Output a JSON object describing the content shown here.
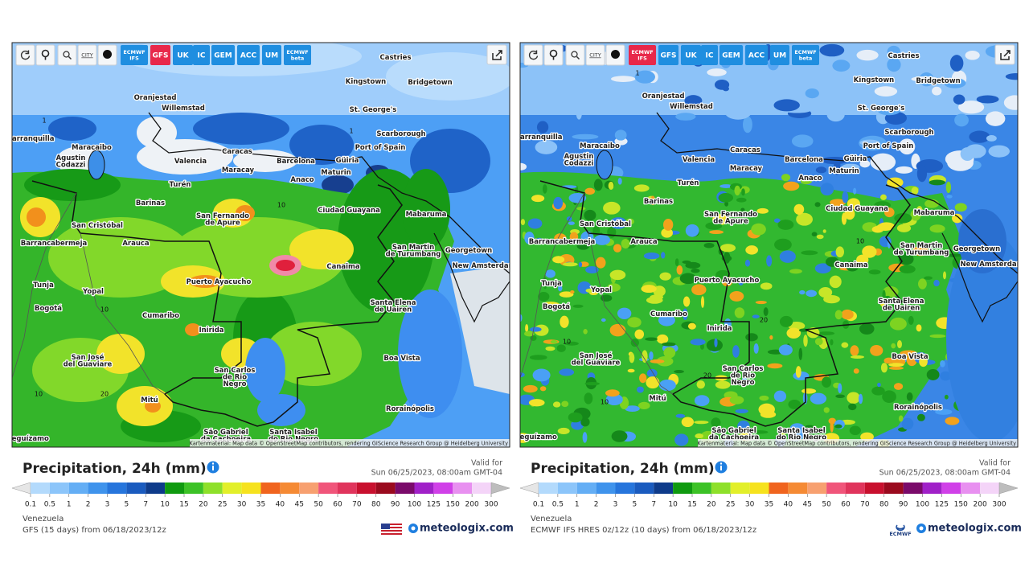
{
  "panels": [
    {
      "toolbar": {
        "city": "CITY",
        "models": [
          [
            "ECMWF",
            "IFS"
          ],
          [
            "GFS"
          ],
          [
            "UK"
          ],
          [
            "IC"
          ],
          [
            "GEM"
          ],
          [
            "ACC"
          ],
          [
            "UM"
          ],
          [
            "ECMWF",
            "beta"
          ]
        ]
      },
      "map": {
        "cities": [
          [
            "Castries"
          ],
          [
            "Kingstown"
          ],
          [
            "Bridgetown"
          ],
          [
            "Oranjestad"
          ],
          [
            "Willemstad"
          ],
          [
            "St. George's"
          ],
          [
            "Scarborough"
          ],
          [
            "Barranquilla"
          ],
          [
            "Port of Spain"
          ],
          [
            "Maracaibo"
          ],
          [
            "Agustin",
            "Codazzi"
          ],
          [
            "Caracas"
          ],
          [
            "Valencia"
          ],
          [
            "Barcelona"
          ],
          [
            "Güiria"
          ],
          [
            "Maracay"
          ],
          [
            "Maturin"
          ],
          [
            "Turén"
          ],
          [
            "Anaco"
          ],
          [
            "Barinas"
          ],
          [
            "Ciudad Guayana"
          ],
          [
            "San Fernando",
            "de Apure"
          ],
          [
            "Mabaruma"
          ],
          [
            "San Cristóbal"
          ],
          [
            "Barrancabermeja"
          ],
          [
            "Arauca"
          ],
          [
            "San Martin",
            "de Turumbang"
          ],
          [
            "Georgetown"
          ],
          [
            "New Amsterdam"
          ],
          [
            "Canaima"
          ],
          [
            "Puerto Ayacucho"
          ],
          [
            "Tunja"
          ],
          [
            "Yopal"
          ],
          [
            "Santa Elena",
            "de Uairen"
          ],
          [
            "Bogotá"
          ],
          [
            "Cumaribo"
          ],
          [
            "Inirida"
          ],
          [
            "Boa Vista"
          ],
          [
            "San José",
            "del Guaviare"
          ],
          [
            "San Carlos",
            "de Rio",
            "Negro"
          ],
          [
            "Mitú"
          ],
          [
            "Rorainópolis"
          ],
          [
            "São Gabriel",
            "da Cachoeira"
          ],
          [
            "Santa Isabel",
            "do Rio Negro"
          ],
          [
            "Leguízamo"
          ]
        ],
        "contours": [
          "1",
          "1",
          "10",
          "10",
          "20",
          "10"
        ],
        "attribution": "Kartenmaterial: Map data © OpenStreetMap contributors, rendering GIScience Research Group @ Heidelberg University"
      },
      "title": "Precipitation, 24h (mm)",
      "valid_label": "Valid for",
      "valid_time": "Sun 06/25/2023, 08:00am GMT-04",
      "scale": [
        0.1,
        0.5,
        1,
        2,
        3,
        5,
        7,
        10,
        15,
        20,
        25,
        30,
        35,
        40,
        45,
        50,
        60,
        70,
        80,
        90,
        100,
        125,
        150,
        200,
        300
      ],
      "region": "Venezuela",
      "model_run": "GFS (15 days) from 06/18/2023/12z",
      "brand": "meteologix.com"
    },
    {
      "toolbar": {
        "city": "CITY",
        "models": [
          [
            "ECMWF",
            "IFS"
          ],
          [
            "GFS"
          ],
          [
            "UK"
          ],
          [
            "IC"
          ],
          [
            "GEM"
          ],
          [
            "ACC"
          ],
          [
            "UM"
          ],
          [
            "ECMWF",
            "beta"
          ]
        ]
      },
      "map": {
        "cities": [
          [
            "Castries"
          ],
          [
            "Kingstown"
          ],
          [
            "Bridgetown"
          ],
          [
            "Oranjestad"
          ],
          [
            "Willemstad"
          ],
          [
            "St. George's"
          ],
          [
            "Scarborough"
          ],
          [
            "Barranquilla"
          ],
          [
            "Port of Spain"
          ],
          [
            "Maracaibo"
          ],
          [
            "Agustin",
            "Codazzi"
          ],
          [
            "Caracas"
          ],
          [
            "Valencia"
          ],
          [
            "Barcelona"
          ],
          [
            "Güiria"
          ],
          [
            "Maracay"
          ],
          [
            "Maturin"
          ],
          [
            "Turén"
          ],
          [
            "Anaco"
          ],
          [
            "Barinas"
          ],
          [
            "Ciudad Guayana"
          ],
          [
            "San Fernando",
            "de Apure"
          ],
          [
            "Mabaruma"
          ],
          [
            "San Cristóbal"
          ],
          [
            "Barrancabermeja"
          ],
          [
            "Arauca"
          ],
          [
            "San Martin",
            "de Turumbang"
          ],
          [
            "Georgetown"
          ],
          [
            "New Amsterdam"
          ],
          [
            "Canaima"
          ],
          [
            "Puerto Ayacucho"
          ],
          [
            "Tunja"
          ],
          [
            "Yopal"
          ],
          [
            "Santa Elena",
            "de Uairen"
          ],
          [
            "Bogotá"
          ],
          [
            "Cumaribo"
          ],
          [
            "Inirida"
          ],
          [
            "Boa Vista"
          ],
          [
            "San José",
            "del Guaviare"
          ],
          [
            "San Carlos",
            "de Rio",
            "Negro"
          ],
          [
            "Mitú"
          ],
          [
            "Rorainópolis"
          ],
          [
            "São Gabriel",
            "da Cachoeira"
          ],
          [
            "Santa Isabel",
            "do Rio Negro"
          ],
          [
            "Leguízamo"
          ]
        ],
        "contours": [
          "1",
          "10",
          "20",
          "10",
          "20",
          "10"
        ],
        "attribution": "Kartenmaterial: Map data © OpenStreetMap contributors, rendering GIScience Research Group @ Heidelberg University"
      },
      "title": "Precipitation, 24h (mm)",
      "valid_label": "Valid for",
      "valid_time": "Sun 06/25/2023, 08:00am GMT-04",
      "scale": [
        0.1,
        0.5,
        1,
        2,
        3,
        5,
        7,
        10,
        15,
        20,
        25,
        30,
        35,
        40,
        45,
        50,
        60,
        70,
        80,
        90,
        100,
        125,
        150,
        200,
        300
      ],
      "region": "Venezuela",
      "model_run": "ECMWF IFS HRES 0z/12z (10 days) from 06/18/2023/12z",
      "logo_text": "ECMWF",
      "brand": "meteologix.com"
    }
  ]
}
